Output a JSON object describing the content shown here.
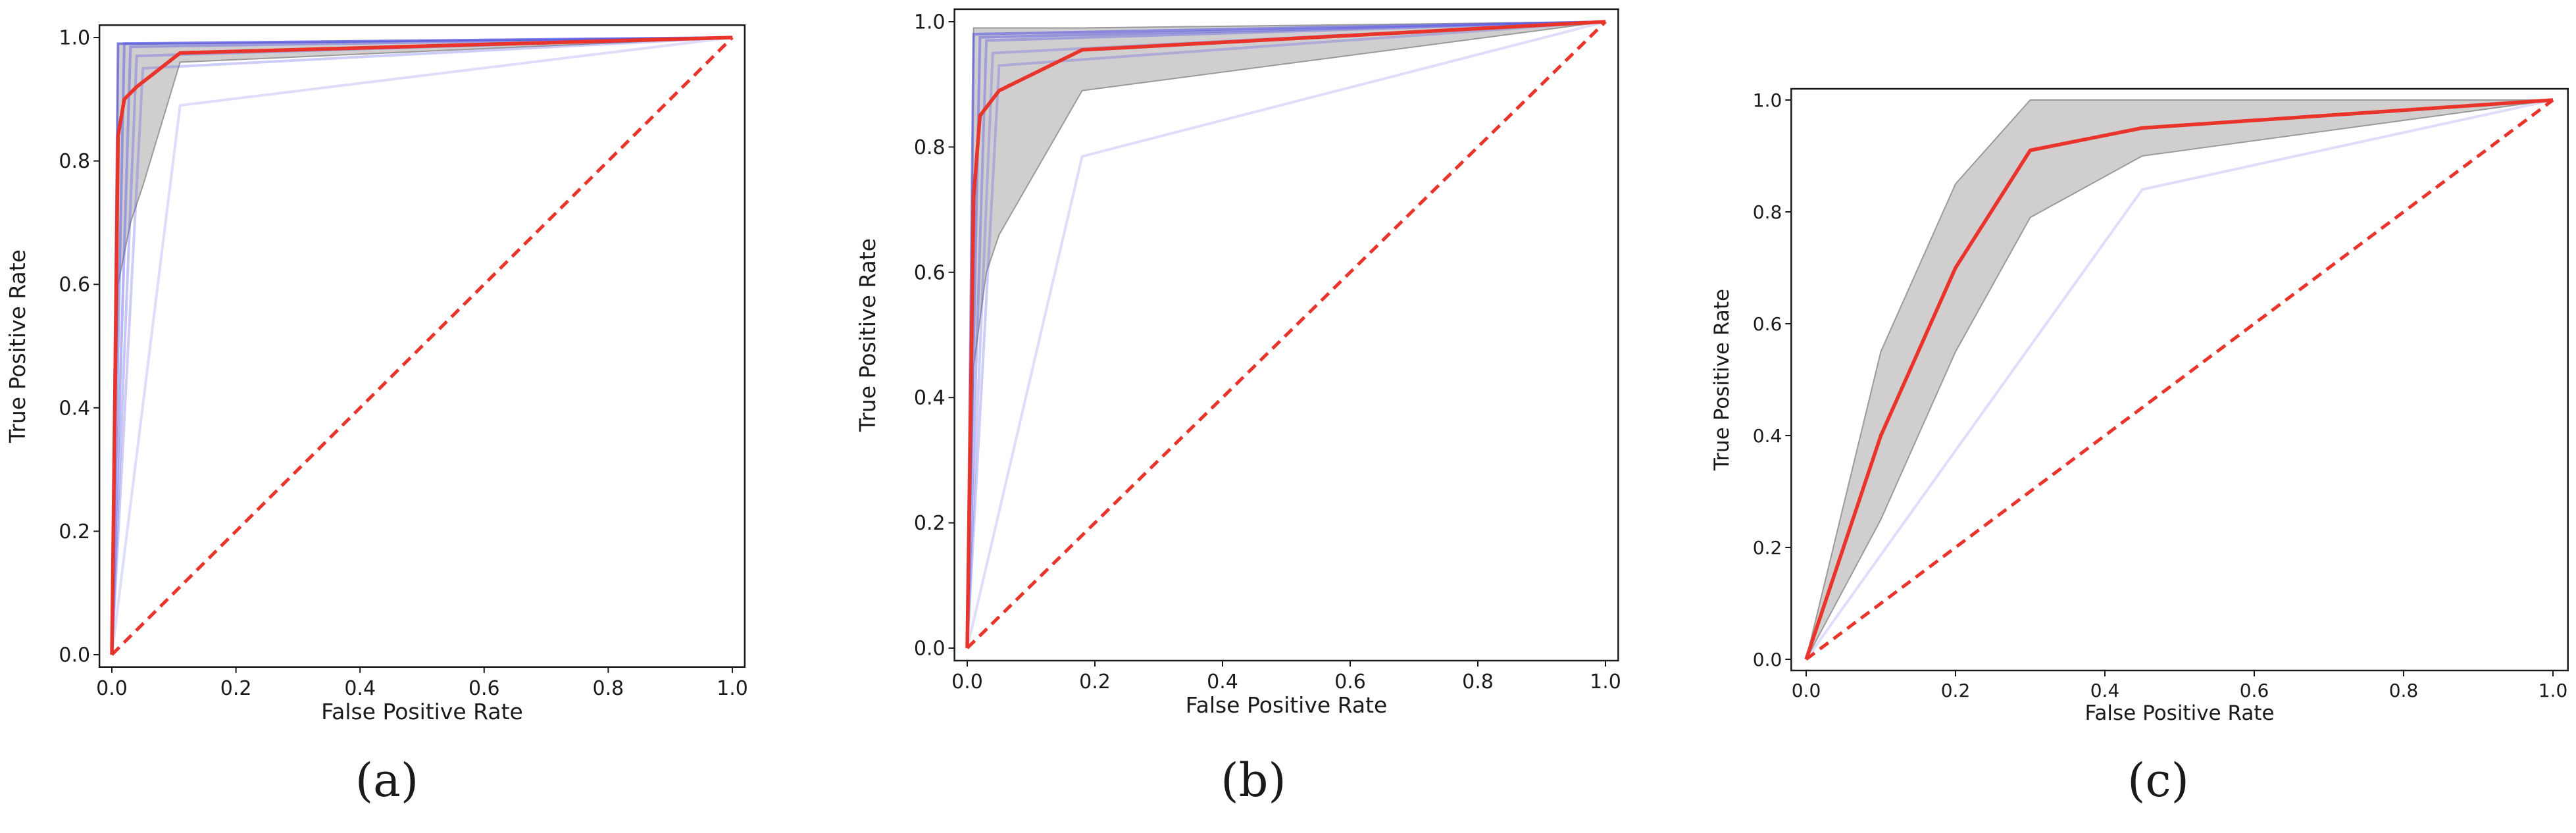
{
  "colors": {
    "mean": "#e8342b",
    "chance": "#e8342b",
    "band_fill": "#c9c5c7",
    "band_edge": "#9a9a9a",
    "fold": "#5a5ae6"
  },
  "chart_data": [
    {
      "type": "line",
      "caption": "(a)",
      "xlabel": "False Positive Rate",
      "ylabel": "True Positive Rate",
      "xlim": [
        0,
        1
      ],
      "ylim": [
        0,
        1
      ],
      "xticks": [
        "0.0",
        "0.2",
        "0.4",
        "0.6",
        "0.8",
        "1.0"
      ],
      "yticks": [
        "0.0",
        "0.2",
        "0.4",
        "0.6",
        "0.8",
        "1.0"
      ],
      "mean": {
        "x": [
          0,
          0.01,
          0.02,
          0.04,
          0.11,
          1.0
        ],
        "y": [
          0,
          0.84,
          0.9,
          0.92,
          0.975,
          1.0
        ]
      },
      "band": {
        "upper": {
          "x": [
            0,
            0.01,
            0.02,
            0.05,
            0.1,
            1.0
          ],
          "y": [
            0,
            0.99,
            0.99,
            0.99,
            0.99,
            1.0
          ]
        },
        "lower": {
          "x": [
            0,
            0.01,
            0.03,
            0.05,
            0.11,
            1.0
          ],
          "y": [
            0,
            0.6,
            0.7,
            0.76,
            0.96,
            1.0
          ]
        }
      },
      "folds": [
        {
          "x": [
            0,
            0.01,
            1.0
          ],
          "y": [
            0,
            0.99,
            1.0
          ],
          "opacity": 0.6
        },
        {
          "x": [
            0,
            0.02,
            1.0
          ],
          "y": [
            0,
            0.99,
            1.0
          ],
          "opacity": 0.5
        },
        {
          "x": [
            0,
            0.03,
            1.0
          ],
          "y": [
            0,
            0.985,
            1.0
          ],
          "opacity": 0.45
        },
        {
          "x": [
            0,
            0.04,
            1.0
          ],
          "y": [
            0,
            0.97,
            1.0
          ],
          "opacity": 0.35
        },
        {
          "x": [
            0,
            0.05,
            1.0
          ],
          "y": [
            0,
            0.95,
            1.0
          ],
          "opacity": 0.3
        },
        {
          "x": [
            0,
            0.11,
            1.0
          ],
          "y": [
            0,
            0.89,
            1.0
          ],
          "opacity": 0.2
        }
      ],
      "chance": {
        "x": [
          0,
          1
        ],
        "y": [
          0,
          1
        ]
      }
    },
    {
      "type": "line",
      "caption": "(b)",
      "xlabel": "False Positive Rate",
      "ylabel": "True Positive Rate",
      "xlim": [
        0,
        1
      ],
      "ylim": [
        0,
        1
      ],
      "xticks": [
        "0.0",
        "0.2",
        "0.4",
        "0.6",
        "0.8",
        "1.0"
      ],
      "yticks": [
        "0.0",
        "0.2",
        "0.4",
        "0.6",
        "0.8",
        "1.0"
      ],
      "mean": {
        "x": [
          0,
          0.01,
          0.02,
          0.05,
          0.18,
          1.0
        ],
        "y": [
          0,
          0.72,
          0.85,
          0.89,
          0.955,
          1.0
        ]
      },
      "band": {
        "upper": {
          "x": [
            0,
            0.01,
            0.02,
            0.05,
            0.18,
            1.0
          ],
          "y": [
            0,
            0.99,
            0.99,
            0.99,
            0.99,
            1.0
          ]
        },
        "lower": {
          "x": [
            0,
            0.01,
            0.03,
            0.05,
            0.18,
            1.0
          ],
          "y": [
            0,
            0.45,
            0.6,
            0.66,
            0.89,
            1.0
          ]
        }
      },
      "folds": [
        {
          "x": [
            0,
            0.01,
            1.0
          ],
          "y": [
            0,
            0.98,
            1.0
          ],
          "opacity": 0.6
        },
        {
          "x": [
            0,
            0.02,
            1.0
          ],
          "y": [
            0,
            0.975,
            1.0
          ],
          "opacity": 0.5
        },
        {
          "x": [
            0,
            0.03,
            1.0
          ],
          "y": [
            0,
            0.97,
            1.0
          ],
          "opacity": 0.4
        },
        {
          "x": [
            0,
            0.04,
            1.0
          ],
          "y": [
            0,
            0.95,
            1.0
          ],
          "opacity": 0.3
        },
        {
          "x": [
            0,
            0.05,
            1.0
          ],
          "y": [
            0,
            0.93,
            1.0
          ],
          "opacity": 0.3
        },
        {
          "x": [
            0,
            0.18,
            1.0
          ],
          "y": [
            0,
            0.785,
            1.0
          ],
          "opacity": 0.2
        }
      ],
      "chance": {
        "x": [
          0,
          1
        ],
        "y": [
          0,
          1
        ]
      }
    },
    {
      "type": "line",
      "caption": "(c)",
      "xlabel": "False Positive Rate",
      "ylabel": "True Positive Rate",
      "xlim": [
        0,
        1
      ],
      "ylim": [
        0,
        1
      ],
      "xticks": [
        "0.0",
        "0.2",
        "0.4",
        "0.6",
        "0.8",
        "1.0"
      ],
      "yticks": [
        "0.0",
        "0.2",
        "0.4",
        "0.6",
        "0.8",
        "1.0"
      ],
      "mean": {
        "x": [
          0,
          0.1,
          0.2,
          0.3,
          0.45,
          1.0
        ],
        "y": [
          0,
          0.4,
          0.7,
          0.91,
          0.95,
          1.0
        ]
      },
      "band": {
        "upper": {
          "x": [
            0,
            0.1,
            0.2,
            0.3,
            0.45,
            1.0
          ],
          "y": [
            0,
            0.55,
            0.85,
            1.0,
            1.0,
            1.0
          ]
        },
        "lower": {
          "x": [
            0,
            0.1,
            0.2,
            0.3,
            0.45,
            1.0
          ],
          "y": [
            0,
            0.25,
            0.55,
            0.79,
            0.9,
            1.0
          ]
        }
      },
      "folds": [
        {
          "x": [
            0,
            0.45,
            1.0
          ],
          "y": [
            0,
            0.84,
            1.0
          ],
          "opacity": 0.2
        }
      ],
      "chance": {
        "x": [
          0,
          1
        ],
        "y": [
          0,
          1
        ]
      }
    }
  ]
}
